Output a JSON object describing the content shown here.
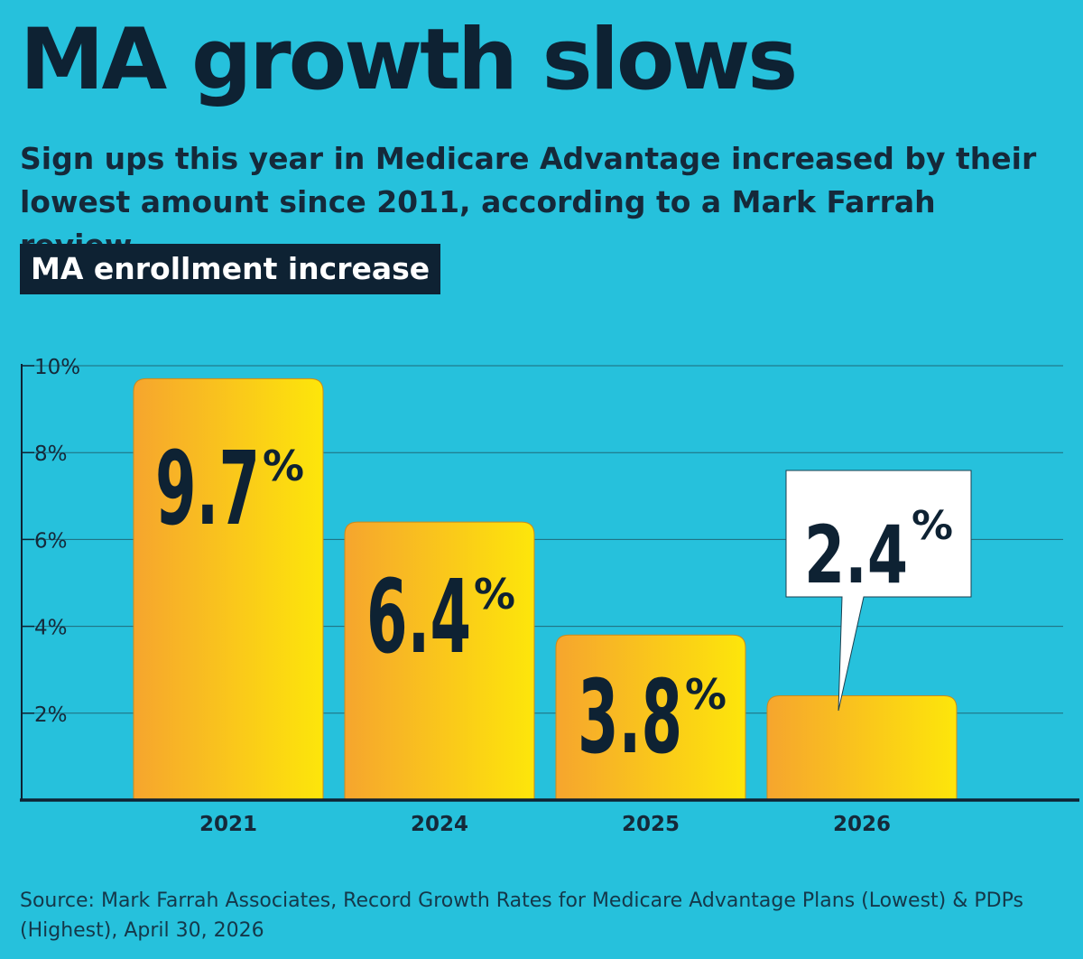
{
  "title": "MA growth slows",
  "subtitle": "Sign ups this year in Medicare Advantage increased by their lowest amount since 2011, according to a Mark Farrah review.",
  "chart_label": "MA enrollment increase",
  "source": "Source: Mark Farrah Associates, Record Growth Rates for Medicare Advantage Plans (Lowest) & PDPs (Highest), April 30, 2026",
  "colors": {
    "background": "#26c1dc",
    "text_dark": "#0e2233",
    "bar_gradient_start": "#f6a52e",
    "bar_gradient_end": "#fde60a",
    "callout_fill": "#ffffff"
  },
  "chart_data": {
    "type": "bar",
    "categories": [
      "2021",
      "2024",
      "2025",
      "2026"
    ],
    "values": [
      9.7,
      6.4,
      3.8,
      2.4
    ],
    "value_labels": [
      "9.7",
      "6.4",
      "3.8",
      "2.4"
    ],
    "value_suffix": "%",
    "callout_index": 3,
    "ylim": [
      0,
      10
    ],
    "yticks": [
      2,
      4,
      6,
      8,
      10
    ],
    "ytick_labels": [
      "2%",
      "4%",
      "6%",
      "8%",
      "10%"
    ],
    "grid": true,
    "legend": "none"
  }
}
